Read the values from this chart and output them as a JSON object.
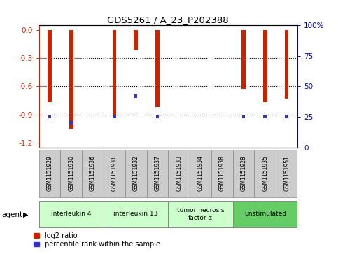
{
  "title": "GDS5261 / A_23_P202388",
  "samples": [
    "GSM1151929",
    "GSM1151930",
    "GSM1151936",
    "GSM1151931",
    "GSM1151932",
    "GSM1151937",
    "GSM1151933",
    "GSM1151934",
    "GSM1151938",
    "GSM1151928",
    "GSM1151935",
    "GSM1151951"
  ],
  "log2_ratio": [
    -0.77,
    -1.05,
    0.0,
    -0.9,
    -0.22,
    -0.82,
    0.0,
    0.0,
    0.0,
    -0.63,
    -0.77,
    -0.73
  ],
  "percentile_rank": [
    25.0,
    20.0,
    null,
    25.0,
    42.0,
    25.0,
    null,
    null,
    null,
    25.0,
    25.0,
    25.0
  ],
  "agents": [
    {
      "label": "interleukin 4",
      "indices": [
        0,
        1,
        2
      ],
      "color": "#ccffcc"
    },
    {
      "label": "interleukin 13",
      "indices": [
        3,
        4,
        5
      ],
      "color": "#ccffcc"
    },
    {
      "label": "tumor necrosis\nfactor-α",
      "indices": [
        6,
        7,
        8
      ],
      "color": "#ccffcc"
    },
    {
      "label": "unstimulated",
      "indices": [
        9,
        10,
        11
      ],
      "color": "#66cc66"
    }
  ],
  "ylim_left": [
    -1.25,
    0.05
  ],
  "ylim_right": [
    0,
    100
  ],
  "left_ticks": [
    0.0,
    -0.3,
    -0.6,
    -0.9,
    -1.2
  ],
  "right_ticks": [
    0,
    25,
    50,
    75,
    100
  ],
  "bar_color": "#cc2200",
  "blue_color": "#3333cc",
  "bar_width": 0.18,
  "background_color": "#ffffff",
  "plot_bg": "#ffffff",
  "left_label_color": "#cc2200",
  "right_label_color": "#0000cc",
  "agent_arrow_label": "agent",
  "legend_log2": "log2 ratio",
  "legend_pct": "percentile rank within the sample"
}
